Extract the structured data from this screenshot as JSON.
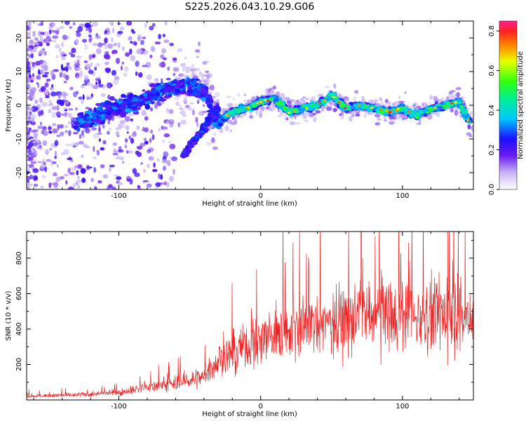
{
  "title": "S225.2026.043.10.29.G06",
  "chart_data": [
    {
      "type": "heatmap",
      "xlabel": "Height of straight line (km)",
      "ylabel": "Frequency (Hz)",
      "xlim": [
        -165,
        150
      ],
      "ylim": [
        -25,
        25
      ],
      "xticks": [
        -100,
        0,
        100
      ],
      "xtick_labels": [
        "-100",
        "0",
        "100"
      ],
      "yticks": [
        -20,
        -10,
        0,
        10,
        20
      ],
      "ytick_labels": [
        "-20",
        "-10",
        "0",
        "10",
        "20"
      ],
      "colorbar": {
        "label": "Normalized spectral amplitude",
        "range": [
          0.0,
          0.85
        ],
        "ticks": [
          0.0,
          0.2,
          0.4,
          0.6,
          0.8
        ],
        "tick_labels": [
          "0.0",
          "0.2",
          "0.4",
          "0.6",
          "0.8"
        ]
      },
      "ridge": {
        "description": "dominant frequency track",
        "x": [
          -125,
          -105,
          -85,
          -70,
          -55,
          -45,
          -38,
          -32,
          -20,
          -10,
          0,
          10,
          20,
          30,
          40,
          50,
          60,
          70,
          80,
          90,
          100,
          110,
          120,
          130,
          140,
          147
        ],
        "y": [
          -5,
          -1,
          1,
          4,
          6,
          5,
          3,
          -5,
          -2,
          -1,
          1,
          2,
          -2,
          -1,
          0,
          3,
          -1,
          0,
          -1,
          -2,
          -1,
          -3,
          -1,
          0,
          1,
          -5
        ]
      },
      "lower_branch": {
        "x": [
          -55,
          -48,
          -42,
          -36,
          -30
        ],
        "y": [
          -15,
          -11,
          -8,
          -4,
          -1
        ]
      }
    },
    {
      "type": "line",
      "xlabel": "Height of straight line (km)",
      "ylabel": "SNR (10 * v/v)",
      "xlim": [
        -165,
        150
      ],
      "ylim": [
        0,
        950
      ],
      "xticks": [
        -100,
        0,
        100
      ],
      "xtick_labels": [
        "-100",
        "0",
        "100"
      ],
      "yticks": [
        200,
        400,
        600,
        800
      ],
      "ytick_labels": [
        "200",
        "400",
        "600",
        "800"
      ],
      "series": [
        {
          "name": "SNR",
          "color": "#ee2222",
          "envelope_x": [
            -165,
            -120,
            -100,
            -80,
            -60,
            -40,
            -33,
            -20,
            0,
            20,
            40,
            60,
            80,
            100,
            120,
            150
          ],
          "envelope_y": [
            20,
            30,
            40,
            70,
            90,
            130,
            200,
            260,
            330,
            390,
            420,
            440,
            460,
            470,
            470,
            470
          ]
        }
      ]
    }
  ]
}
